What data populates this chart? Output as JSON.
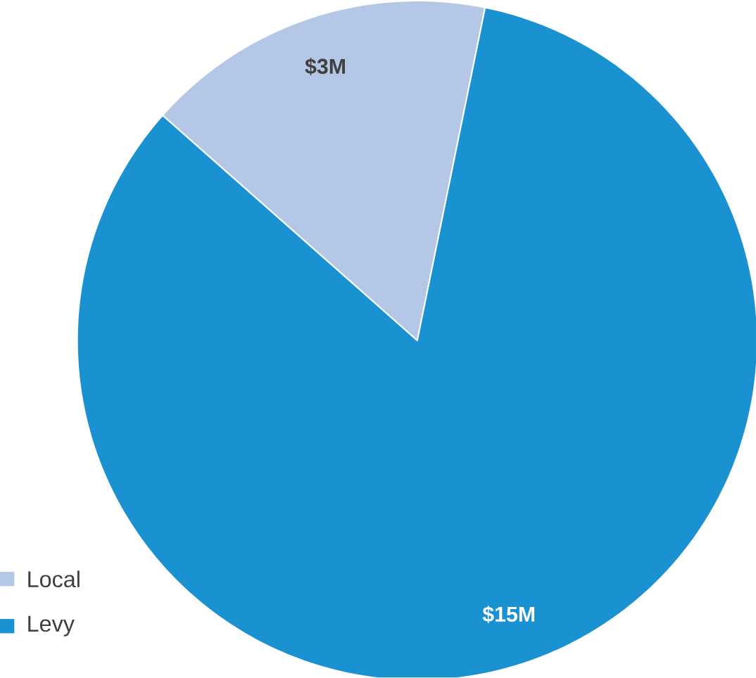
{
  "chart_data": {
    "type": "pie",
    "categories": [
      "Local",
      "Levy"
    ],
    "values": [
      3,
      15
    ],
    "value_labels": [
      "$3M",
      "$15M"
    ],
    "colors": [
      "#b4c7e7",
      "#1a91d1"
    ],
    "legend": "bottom left"
  }
}
